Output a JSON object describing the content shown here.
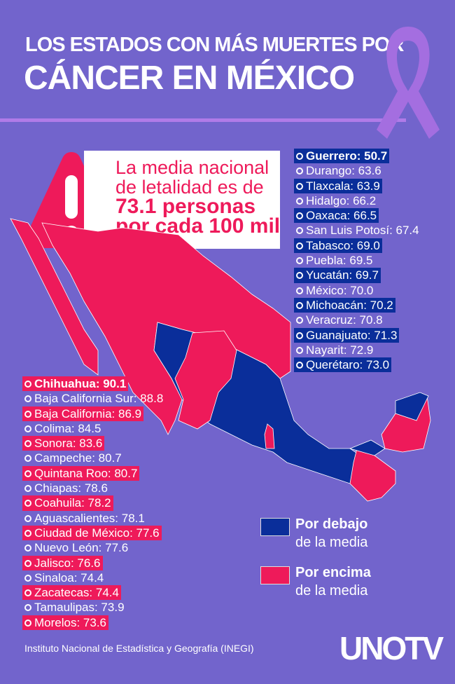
{
  "header": {
    "line1": "LOS ESTADOS CON MÁS MUERTES POR",
    "line2": "CÁNCER EN MÉXICO"
  },
  "alert": {
    "line1": "La media nacional",
    "line2": "de letalidad es de",
    "line3": "73.1 personas",
    "line4": "por cada 100 mil",
    "icon": "warning-triangle-icon"
  },
  "colors": {
    "background": "#7264cc",
    "above": "#ee1a5a",
    "below": "#0a2e9a",
    "accent": "#b07be8"
  },
  "below_list": [
    {
      "label": "Guerrero: 50.7",
      "value": 50.7
    },
    {
      "label": "Durango: 63.6",
      "value": 63.6
    },
    {
      "label": "Tlaxcala: 63.9",
      "value": 63.9
    },
    {
      "label": "Hidalgo: 66.2",
      "value": 66.2
    },
    {
      "label": "Oaxaca: 66.5",
      "value": 66.5
    },
    {
      "label": "San Luis Potosí: 67.4",
      "value": 67.4
    },
    {
      "label": "Tabasco: 69.0",
      "value": 69.0
    },
    {
      "label": "Puebla: 69.5",
      "value": 69.5
    },
    {
      "label": "Yucatán: 69.7",
      "value": 69.7
    },
    {
      "label": "México: 70.0",
      "value": 70.0
    },
    {
      "label": "Michoacán: 70.2",
      "value": 70.2
    },
    {
      "label": "Veracruz: 70.8",
      "value": 70.8
    },
    {
      "label": "Guanajuato: 71.3",
      "value": 71.3
    },
    {
      "label": "Nayarit: 72.9",
      "value": 72.9
    },
    {
      "label": "Querétaro: 73.0",
      "value": 73.0
    }
  ],
  "above_list": [
    {
      "label": "Chihuahua: 90.1",
      "value": 90.1
    },
    {
      "label": "Baja California Sur: 88.8",
      "value": 88.8
    },
    {
      "label": "Baja California: 86.9",
      "value": 86.9
    },
    {
      "label": "Colima: 84.5",
      "value": 84.5
    },
    {
      "label": "Sonora: 83.6",
      "value": 83.6
    },
    {
      "label": "Campeche: 80.7",
      "value": 80.7
    },
    {
      "label": "Quintana Roo: 80.7",
      "value": 80.7
    },
    {
      "label": "Chiapas: 78.6",
      "value": 78.6
    },
    {
      "label": "Coahuila: 78.2",
      "value": 78.2
    },
    {
      "label": "Aguascalientes: 78.1",
      "value": 78.1
    },
    {
      "label": "Ciudad de México: 77.6",
      "value": 77.6
    },
    {
      "label": "Nuevo León: 77.6",
      "value": 77.6
    },
    {
      "label": "Jalisco: 76.6",
      "value": 76.6
    },
    {
      "label": "Sinaloa: 74.4",
      "value": 74.4
    },
    {
      "label": "Zacatecas: 74.4",
      "value": 74.4
    },
    {
      "label": "Tamaulipas: 73.9",
      "value": 73.9
    },
    {
      "label": "Morelos: 73.6",
      "value": 73.6
    }
  ],
  "legend": {
    "below_bold": "Por debajo",
    "below_rest": "de la media",
    "above_bold": "Por encima",
    "above_rest": "de la media"
  },
  "footer": {
    "source": "Instituto Nacional de Estadística y Geografía (INEGI)",
    "logo": "UNOTV"
  }
}
